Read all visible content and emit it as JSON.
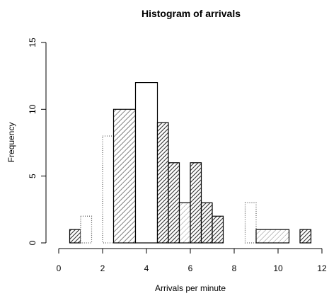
{
  "chart_data": {
    "type": "bar",
    "title": "Histogram of arrivals",
    "xlabel": "Arrivals per minute",
    "ylabel": "Frequency",
    "xlim": [
      0,
      12
    ],
    "ylim": [
      0,
      15
    ],
    "x_ticks": [
      0,
      2,
      4,
      6,
      8,
      10,
      12
    ],
    "y_ticks": [
      0,
      5,
      10,
      15
    ],
    "grid": false,
    "bar_fill": "hatched",
    "bars": [
      {
        "start": 0.5,
        "end": 1.0,
        "value": 1,
        "style": "dark"
      },
      {
        "start": 1.0,
        "end": 1.5,
        "value": 2,
        "style": "dotted"
      },
      {
        "start": 2.0,
        "end": 2.5,
        "value": 8,
        "style": "dotted"
      },
      {
        "start": 2.5,
        "end": 3.5,
        "value": 10,
        "style": "medium"
      },
      {
        "start": 3.5,
        "end": 4.5,
        "value": 12,
        "style": "blank"
      },
      {
        "start": 4.5,
        "end": 5.0,
        "value": 9,
        "style": "dark"
      },
      {
        "start": 5.0,
        "end": 5.5,
        "value": 6,
        "style": "dark"
      },
      {
        "start": 5.5,
        "end": 6.0,
        "value": 3,
        "style": "light"
      },
      {
        "start": 6.0,
        "end": 6.5,
        "value": 6,
        "style": "dark"
      },
      {
        "start": 6.5,
        "end": 7.0,
        "value": 3,
        "style": "dark"
      },
      {
        "start": 7.0,
        "end": 7.5,
        "value": 2,
        "style": "dark"
      },
      {
        "start": 8.5,
        "end": 9.0,
        "value": 3,
        "style": "dotted"
      },
      {
        "start": 9.0,
        "end": 10.5,
        "value": 1,
        "style": "light"
      },
      {
        "start": 11.0,
        "end": 11.5,
        "value": 1,
        "style": "dark"
      }
    ]
  }
}
